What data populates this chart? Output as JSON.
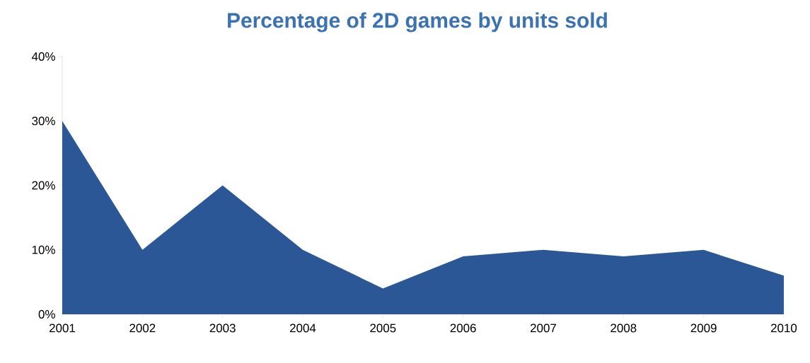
{
  "chart_data": {
    "type": "area",
    "title": "Percentage of 2D games by units sold",
    "categories": [
      "2001",
      "2002",
      "2003",
      "2004",
      "2005",
      "2006",
      "2007",
      "2008",
      "2009",
      "2010"
    ],
    "values": [
      30,
      10,
      20,
      10,
      4,
      9,
      10,
      9,
      10,
      6
    ],
    "color": "#2b5797",
    "ylim": [
      0,
      40
    ],
    "yticks": [
      {
        "value": 0,
        "label": "0%"
      },
      {
        "value": 10,
        "label": "10%"
      },
      {
        "value": 20,
        "label": "20%"
      },
      {
        "value": 30,
        "label": "30%"
      },
      {
        "value": 40,
        "label": "40%"
      }
    ]
  }
}
